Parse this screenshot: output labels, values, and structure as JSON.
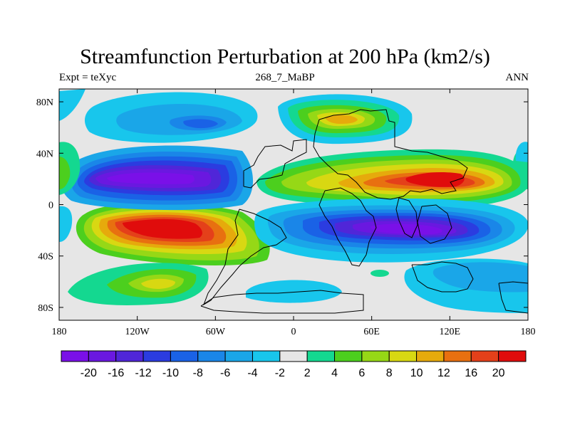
{
  "title": "Streamfunction Perturbation at 200 hPa (km2/s)",
  "left_string": "Expt = teXyc",
  "center_string": "268_7_MaBP",
  "right_string": "ANN",
  "lon_ticks": [
    {
      "lon": -180,
      "label": "180"
    },
    {
      "lon": -120,
      "label": "120W"
    },
    {
      "lon": -60,
      "label": "60W"
    },
    {
      "lon": 0,
      "label": "0"
    },
    {
      "lon": 60,
      "label": "60E"
    },
    {
      "lon": 120,
      "label": "120E"
    },
    {
      "lon": 180,
      "label": "180"
    }
  ],
  "lat_ticks": [
    {
      "lat": 80,
      "label": "80N"
    },
    {
      "lat": 40,
      "label": "40N"
    },
    {
      "lat": 0,
      "label": "0"
    },
    {
      "lat": -40,
      "label": "40S"
    },
    {
      "lat": -80,
      "label": "80S"
    }
  ],
  "colorbar": {
    "colors": [
      "#7a10e8",
      "#6a18e0",
      "#5026d8",
      "#2b3ce0",
      "#1a62e6",
      "#1a86e8",
      "#1aa6e8",
      "#18c6ec",
      "#e6e6e6",
      "#14d890",
      "#4ccf1e",
      "#96d816",
      "#d8d812",
      "#e6aa0c",
      "#e87010",
      "#e4401a",
      "#e00c0c"
    ],
    "labels": [
      "-20",
      "-16",
      "-12",
      "-10",
      "-8",
      "-6",
      "-4",
      "-2",
      "2",
      "4",
      "6",
      "8",
      "10",
      "12",
      "16",
      "20"
    ]
  },
  "chart_data": {
    "type": "heatmap",
    "title": "Streamfunction Perturbation at 200 hPa (km2/s)",
    "subtitle": "268_7_MaBP",
    "left_annotation": "Expt = teXyc",
    "right_annotation": "ANN",
    "x_axis": {
      "range": [
        -180,
        180
      ],
      "ticks": [
        "180",
        "120W",
        "60W",
        "0",
        "60E",
        "120E",
        "180"
      ]
    },
    "y_axis": {
      "range": [
        -90,
        90
      ],
      "ticks": [
        "80N",
        "40N",
        "0",
        "40S",
        "80S"
      ]
    },
    "levels": [
      -20,
      -16,
      -12,
      -10,
      -8,
      -6,
      -4,
      -2,
      2,
      4,
      6,
      8,
      10,
      12,
      16,
      20
    ],
    "features": [
      {
        "lon": -90,
        "lat": -15,
        "value": 22,
        "note": "maximum"
      },
      {
        "lon": -100,
        "lat": -60,
        "value": 8
      },
      {
        "lon": -95,
        "lat": 20,
        "value": -20,
        "note": "minimum"
      },
      {
        "lon": -70,
        "lat": 62,
        "value": -6
      },
      {
        "lon": 30,
        "lat": 60,
        "value": 12
      },
      {
        "lon": 105,
        "lat": 20,
        "value": 20,
        "note": "maximum"
      },
      {
        "lon": 100,
        "lat": -25,
        "value": -18,
        "note": "minimum"
      },
      {
        "lon": -172,
        "lat": 25,
        "value": 4
      },
      {
        "lon": 65,
        "lat": -54,
        "value": 4
      }
    ]
  }
}
